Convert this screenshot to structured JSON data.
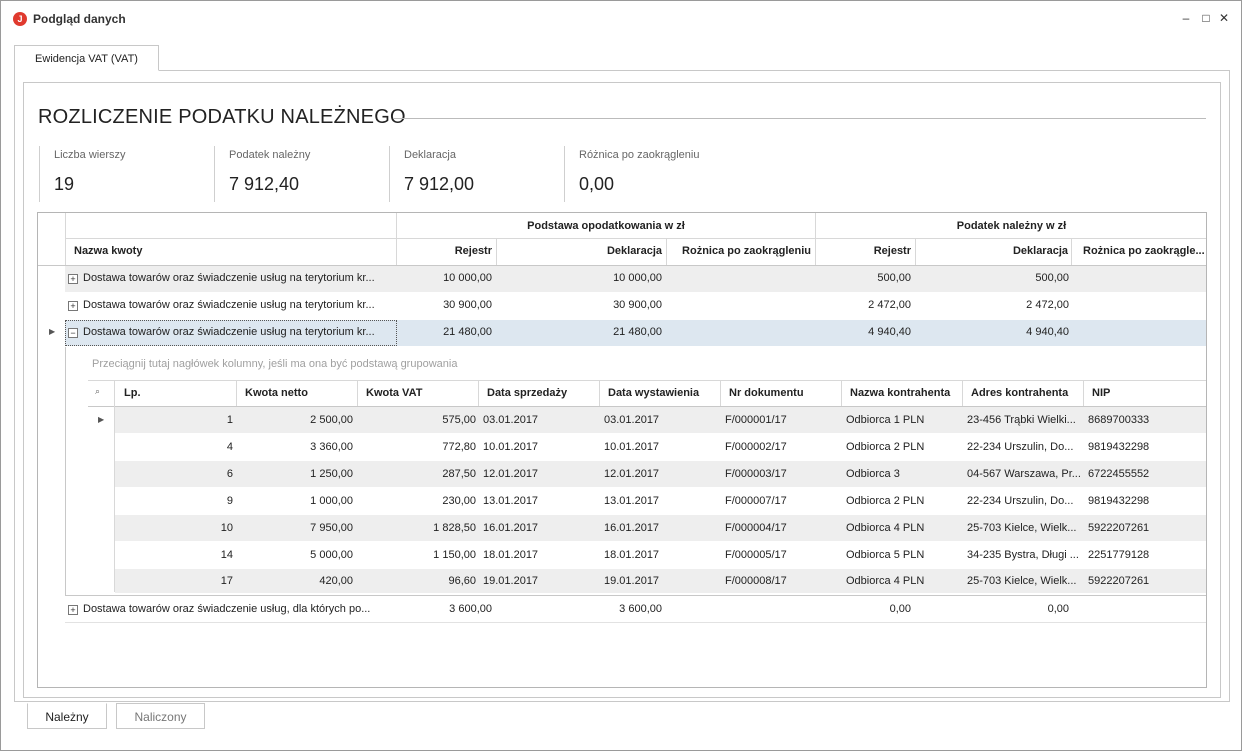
{
  "window": {
    "title": "Podgląd danych",
    "app_icon_letter": "J"
  },
  "top_tabs": [
    {
      "label": "Ewidencja VAT (VAT)"
    }
  ],
  "heading": "ROZLICZENIE PODATKU NALEŻNEGO",
  "stats": [
    {
      "label": "Liczba wierszy",
      "value": "19"
    },
    {
      "label": "Podatek należny",
      "value": "7 912,40"
    },
    {
      "label": "Deklaracja",
      "value": "7 912,00"
    },
    {
      "label": "Różnica po zaokrągleniu",
      "value": "0,00"
    }
  ],
  "grid": {
    "band_base": "Podstawa opodatkowania w zł",
    "band_tax": "Podatek należny w zł",
    "columns": {
      "name": "Nazwa kwoty",
      "rejestr": "Rejestr",
      "deklaracja": "Deklaracja",
      "roznica": "Rożnica po zaokrągleniu",
      "tax_rejestr": "Rejestr",
      "tax_deklaracja": "Deklaracja",
      "tax_roznica": "Rożnica po zaokrągle..."
    },
    "rows": [
      {
        "name": "Dostawa towarów oraz świadczenie usług na terytorium kr...",
        "rejestr": "10 000,00",
        "deklaracja": "10 000,00",
        "tax_rejestr": "500,00",
        "tax_deklaracja": "500,00"
      },
      {
        "name": "Dostawa towarów oraz świadczenie usług na terytorium kr...",
        "rejestr": "30 900,00",
        "deklaracja": "30 900,00",
        "tax_rejestr": "2 472,00",
        "tax_deklaracja": "2 472,00"
      },
      {
        "name": "Dostawa towarów oraz świadczenie usług na terytorium kr...",
        "rejestr": "21 480,00",
        "deklaracja": "21 480,00",
        "tax_rejestr": "4 940,40",
        "tax_deklaracja": "4 940,40"
      }
    ],
    "last_row": {
      "name": "Dostawa towarów oraz świadczenie usług, dla których po...",
      "rejestr": "3 600,00",
      "deklaracja": "3 600,00",
      "tax_rejestr": "0,00",
      "tax_deklaracja": "0,00"
    },
    "detail": {
      "group_hint": "Przeciągnij tutaj nagłówek kolumny, jeśli ma ona być podstawą grupowania",
      "columns": {
        "lp": "Lp.",
        "netto": "Kwota netto",
        "vat": "Kwota VAT",
        "data_sprz": "Data sprzedaży",
        "data_wyst": "Data wystawienia",
        "nr": "Nr dokumentu",
        "kontrahent": "Nazwa kontrahenta",
        "adres": "Adres kontrahenta",
        "nip": "NIP"
      },
      "rows": [
        {
          "lp": "1",
          "netto": "2 500,00",
          "vat": "575,00",
          "data_sprz": "03.01.2017",
          "data_wyst": "03.01.2017",
          "nr": "F/000001/17",
          "kontrahent": "Odbiorca 1 PLN",
          "adres": "23-456 Trąbki Wielki...",
          "nip": "8689700333"
        },
        {
          "lp": "4",
          "netto": "3 360,00",
          "vat": "772,80",
          "data_sprz": "10.01.2017",
          "data_wyst": "10.01.2017",
          "nr": "F/000002/17",
          "kontrahent": "Odbiorca 2 PLN",
          "adres": "22-234 Urszulin, Do...",
          "nip": "9819432298"
        },
        {
          "lp": "6",
          "netto": "1 250,00",
          "vat": "287,50",
          "data_sprz": "12.01.2017",
          "data_wyst": "12.01.2017",
          "nr": "F/000003/17",
          "kontrahent": "Odbiorca 3",
          "adres": "04-567 Warszawa, Pr...",
          "nip": "6722455552"
        },
        {
          "lp": "9",
          "netto": "1 000,00",
          "vat": "230,00",
          "data_sprz": "13.01.2017",
          "data_wyst": "13.01.2017",
          "nr": "F/000007/17",
          "kontrahent": "Odbiorca 2 PLN",
          "adres": "22-234 Urszulin, Do...",
          "nip": "9819432298"
        },
        {
          "lp": "10",
          "netto": "7 950,00",
          "vat": "1 828,50",
          "data_sprz": "16.01.2017",
          "data_wyst": "16.01.2017",
          "nr": "F/000004/17",
          "kontrahent": "Odbiorca 4 PLN",
          "adres": "25-703 Kielce, Wielk...",
          "nip": "5922207261"
        },
        {
          "lp": "14",
          "netto": "5 000,00",
          "vat": "1 150,00",
          "data_sprz": "18.01.2017",
          "data_wyst": "18.01.2017",
          "nr": "F/000005/17",
          "kontrahent": "Odbiorca 5 PLN",
          "adres": "34-235 Bystra, Długi ...",
          "nip": "2251779128"
        },
        {
          "lp": "17",
          "netto": "420,00",
          "vat": "96,60",
          "data_sprz": "19.01.2017",
          "data_wyst": "19.01.2017",
          "nr": "F/000008/17",
          "kontrahent": "Odbiorca 4 PLN",
          "adres": "25-703 Kielce, Wielk...",
          "nip": "5922207261"
        }
      ]
    }
  },
  "bottom_tabs": [
    {
      "label": "Należny"
    },
    {
      "label": "Naliczony"
    }
  ],
  "colors": {
    "alt_row": "#eeeeee",
    "selected_row": "#dde7f0",
    "accent_icon": "#e03a2e"
  }
}
